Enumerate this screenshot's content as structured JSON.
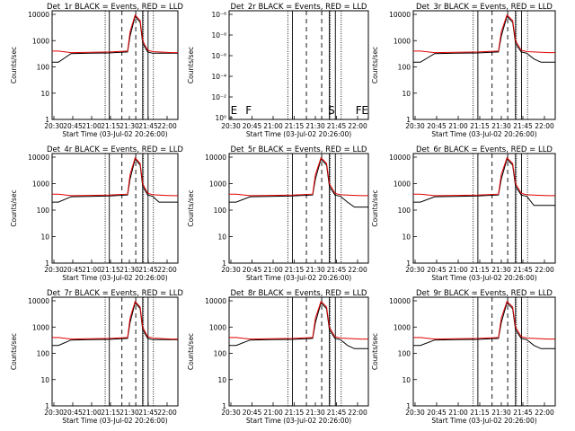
{
  "figure": {
    "background": "#ffffff"
  },
  "colors": {
    "events": "#000000",
    "lld": "#e00000",
    "axes": "#000000"
  },
  "shared": {
    "xlabel": "Start Time (03-Jul-02 20:26:00)",
    "ylabel": "Counts/sec",
    "x_ticks": [
      "20:30",
      "20:45",
      "21:00",
      "21:15",
      "21:30",
      "21:45",
      "22:00"
    ],
    "y_ticks_standard": [
      "1",
      "10",
      "100",
      "1000",
      "10000"
    ],
    "y_ticks_det2": [
      "10⁰",
      "10⁻²",
      "10⁻⁴",
      "10⁻⁶",
      "10⁻⁸",
      "10⁻⁶"
    ]
  },
  "chart_data": [
    {
      "type": "line",
      "title": "Det_1r BLACK = Events, RED = LLD",
      "x_minutes": [
        0,
        5,
        15,
        30,
        45,
        60,
        62,
        66,
        70,
        72,
        76,
        80,
        85,
        90,
        95,
        100
      ],
      "series": [
        {
          "name": "Events",
          "color": "#000000",
          "values": [
            150,
            150,
            320,
            330,
            340,
            370,
            1500,
            8500,
            5000,
            800,
            370,
            330,
            330,
            330,
            330,
            330
          ]
        },
        {
          "name": "LLD",
          "color": "#e00000",
          "values": [
            400,
            400,
            350,
            360,
            370,
            400,
            2200,
            9500,
            5800,
            1000,
            430,
            380,
            370,
            360,
            350,
            350
          ]
        }
      ],
      "ylim": [
        1,
        10000
      ],
      "xlim": [
        0,
        100
      ],
      "yscale": "log",
      "annotations": []
    },
    {
      "type": "line",
      "title": "Det_2r BLACK = Events, RED = LLD",
      "x_minutes": [],
      "series": [],
      "ylim": [
        1,
        10000
      ],
      "xlim": [
        0,
        100
      ],
      "yscale": "log",
      "annotations": [
        "E",
        "F",
        "S",
        "F",
        "E"
      ]
    },
    {
      "type": "line",
      "title": "Det_3r BLACK = Events, RED = LLD",
      "x_minutes": [
        0,
        5,
        15,
        30,
        45,
        60,
        62,
        66,
        70,
        72,
        76,
        80,
        85,
        90,
        95,
        100
      ],
      "series": [
        {
          "name": "Events",
          "color": "#000000",
          "values": [
            150,
            150,
            320,
            330,
            340,
            370,
            1500,
            8500,
            5000,
            800,
            370,
            330,
            200,
            150,
            150,
            150
          ]
        },
        {
          "name": "LLD",
          "color": "#e00000",
          "values": [
            400,
            400,
            350,
            360,
            370,
            400,
            2200,
            9500,
            5800,
            1000,
            430,
            380,
            370,
            360,
            350,
            350
          ]
        }
      ],
      "ylim": [
        1,
        10000
      ],
      "xlim": [
        0,
        100
      ],
      "yscale": "log",
      "annotations": []
    },
    {
      "type": "line",
      "title": "Det_4r BLACK = Events, RED = LLD",
      "x_minutes": [
        0,
        5,
        15,
        30,
        45,
        60,
        62,
        66,
        70,
        72,
        76,
        80,
        85,
        90,
        95,
        100
      ],
      "series": [
        {
          "name": "Events",
          "color": "#000000",
          "values": [
            200,
            200,
            320,
            330,
            340,
            370,
            1500,
            8500,
            5000,
            800,
            370,
            330,
            200,
            200,
            200,
            200
          ]
        },
        {
          "name": "LLD",
          "color": "#e00000",
          "values": [
            400,
            400,
            350,
            360,
            370,
            400,
            2200,
            9500,
            5800,
            1000,
            430,
            380,
            370,
            360,
            350,
            350
          ]
        }
      ],
      "ylim": [
        1,
        10000
      ],
      "xlim": [
        0,
        100
      ],
      "yscale": "log",
      "annotations": []
    },
    {
      "type": "line",
      "title": "Det_5r BLACK = Events, RED = LLD",
      "x_minutes": [
        0,
        5,
        15,
        30,
        45,
        60,
        62,
        66,
        70,
        72,
        76,
        80,
        85,
        90,
        95,
        100
      ],
      "series": [
        {
          "name": "Events",
          "color": "#000000",
          "values": [
            200,
            200,
            320,
            330,
            340,
            370,
            1500,
            8500,
            5000,
            800,
            370,
            330,
            200,
            130,
            130,
            130
          ]
        },
        {
          "name": "LLD",
          "color": "#e00000",
          "values": [
            400,
            400,
            350,
            360,
            370,
            400,
            2200,
            9500,
            5800,
            1000,
            430,
            380,
            370,
            360,
            350,
            350
          ]
        }
      ],
      "ylim": [
        1,
        10000
      ],
      "xlim": [
        0,
        100
      ],
      "yscale": "log",
      "annotations": []
    },
    {
      "type": "line",
      "title": "Det_6r BLACK = Events, RED = LLD",
      "x_minutes": [
        0,
        5,
        15,
        30,
        45,
        60,
        62,
        66,
        70,
        72,
        76,
        80,
        85,
        90,
        95,
        100
      ],
      "series": [
        {
          "name": "Events",
          "color": "#000000",
          "values": [
            200,
            200,
            320,
            330,
            340,
            370,
            1500,
            8500,
            5000,
            800,
            370,
            330,
            150,
            150,
            150,
            150
          ]
        },
        {
          "name": "LLD",
          "color": "#e00000",
          "values": [
            400,
            400,
            350,
            360,
            370,
            400,
            2200,
            9500,
            5800,
            1000,
            430,
            380,
            370,
            360,
            350,
            350
          ]
        }
      ],
      "ylim": [
        1,
        10000
      ],
      "xlim": [
        0,
        100
      ],
      "yscale": "log",
      "annotations": []
    },
    {
      "type": "line",
      "title": "Det_7r BLACK = Events, RED = LLD",
      "x_minutes": [
        0,
        5,
        15,
        30,
        45,
        60,
        62,
        66,
        70,
        72,
        76,
        80,
        85,
        90,
        95,
        100
      ],
      "series": [
        {
          "name": "Events",
          "color": "#000000",
          "values": [
            200,
            200,
            320,
            330,
            340,
            370,
            1500,
            8500,
            5000,
            800,
            370,
            330,
            330,
            330,
            330,
            330
          ]
        },
        {
          "name": "LLD",
          "color": "#e00000",
          "values": [
            400,
            400,
            350,
            360,
            370,
            400,
            2200,
            9500,
            5800,
            1000,
            430,
            380,
            370,
            360,
            350,
            350
          ]
        }
      ],
      "ylim": [
        1,
        10000
      ],
      "xlim": [
        0,
        100
      ],
      "yscale": "log",
      "annotations": []
    },
    {
      "type": "line",
      "title": "Det_8r BLACK = Events, RED = LLD",
      "x_minutes": [
        0,
        5,
        15,
        30,
        45,
        60,
        62,
        66,
        70,
        72,
        76,
        80,
        85,
        90,
        95,
        100
      ],
      "series": [
        {
          "name": "Events",
          "color": "#000000",
          "values": [
            200,
            200,
            320,
            330,
            340,
            370,
            1500,
            8500,
            5000,
            800,
            370,
            330,
            200,
            150,
            150,
            150
          ]
        },
        {
          "name": "LLD",
          "color": "#e00000",
          "values": [
            400,
            400,
            350,
            360,
            370,
            400,
            2200,
            9500,
            5800,
            1000,
            430,
            380,
            370,
            360,
            350,
            350
          ]
        }
      ],
      "ylim": [
        1,
        10000
      ],
      "xlim": [
        0,
        100
      ],
      "yscale": "log",
      "annotations": []
    },
    {
      "type": "line",
      "title": "Det_9r BLACK = Events, RED = LLD",
      "x_minutes": [
        0,
        5,
        15,
        30,
        45,
        60,
        62,
        66,
        70,
        72,
        76,
        80,
        85,
        90,
        95,
        100
      ],
      "series": [
        {
          "name": "Events",
          "color": "#000000",
          "values": [
            200,
            200,
            320,
            330,
            340,
            370,
            1500,
            8500,
            5000,
            800,
            370,
            330,
            200,
            150,
            150,
            150
          ]
        },
        {
          "name": "LLD",
          "color": "#e00000",
          "values": [
            400,
            400,
            350,
            360,
            370,
            400,
            2200,
            9500,
            5800,
            1000,
            430,
            380,
            370,
            360,
            350,
            350
          ]
        }
      ],
      "ylim": [
        1,
        10000
      ],
      "xlim": [
        0,
        100
      ],
      "yscale": "log",
      "annotations": []
    }
  ]
}
